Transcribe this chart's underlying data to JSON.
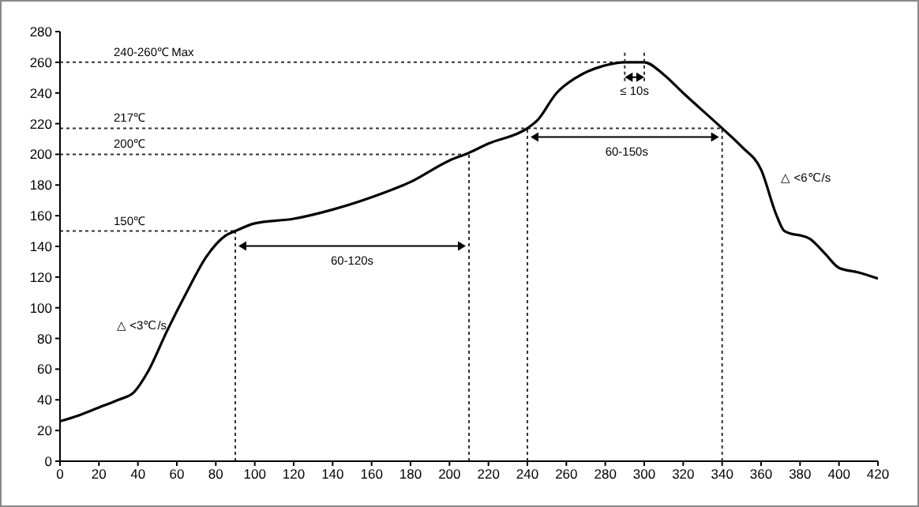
{
  "chart_data": {
    "type": "line",
    "x": [
      0,
      10,
      20,
      30,
      38,
      45,
      55,
      65,
      75,
      85,
      90,
      100,
      120,
      140,
      160,
      180,
      200,
      210,
      220,
      240,
      245,
      255,
      265,
      280,
      290,
      300,
      310,
      320,
      340,
      350,
      360,
      368,
      372,
      385,
      393,
      400,
      410,
      420
    ],
    "series": [
      {
        "color": "#000000",
        "values": [
          26,
          30,
          35,
          40,
          45,
          58,
          85,
          110,
          133,
          147,
          150,
          155,
          158,
          164,
          172,
          182,
          196,
          201,
          207,
          217,
          222,
          240,
          250,
          258,
          260,
          260,
          252,
          240,
          217,
          205,
          190,
          160,
          150,
          145,
          135,
          126,
          123,
          119
        ]
      }
    ],
    "xlim": [
      0,
      420
    ],
    "xticks": [
      0,
      20,
      40,
      60,
      80,
      100,
      120,
      140,
      160,
      180,
      200,
      220,
      240,
      260,
      280,
      300,
      320,
      340,
      360,
      380,
      400,
      420
    ],
    "ylim": [
      0,
      280
    ],
    "yticks": [
      0,
      20,
      40,
      60,
      80,
      100,
      120,
      140,
      160,
      180,
      200,
      220,
      240,
      260,
      280
    ],
    "marker": "none",
    "line_style": "solid",
    "ref_lines": [
      {
        "axis": "y",
        "value": 260,
        "label": "240-260℃ Max",
        "line_style": "dotted",
        "color": "#333333"
      },
      {
        "axis": "y",
        "value": 217,
        "label": "217℃",
        "line_style": "dotted",
        "color": "#333333"
      },
      {
        "axis": "y",
        "value": 200,
        "label": "200℃",
        "line_style": "dotted",
        "color": "#333333"
      },
      {
        "axis": "y",
        "value": 150,
        "label": "150℃",
        "line_style": "dotted",
        "color": "#333333"
      },
      {
        "axis": "x",
        "value": 90,
        "line_style": "dotted",
        "color": "#333333"
      },
      {
        "axis": "x",
        "value": 210,
        "line_style": "dotted",
        "color": "#333333"
      },
      {
        "axis": "x",
        "value": 240,
        "line_style": "dotted",
        "color": "#333333"
      },
      {
        "axis": "x",
        "value": 340,
        "line_style": "dotted",
        "color": "#333333"
      }
    ],
    "annotations": [
      "60-120s",
      "60-150s",
      "≤ 10s",
      "△ <3℃/s",
      "△ <6℃/s"
    ]
  }
}
